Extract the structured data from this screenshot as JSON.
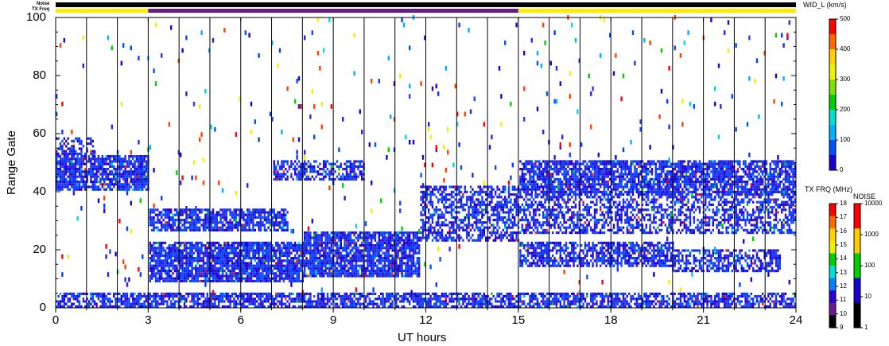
{
  "chart_data": {
    "type": "heatmap",
    "xlabel": "UT hours",
    "ylabel": "Range Gate",
    "xlim": [
      0,
      24
    ],
    "ylim": [
      0,
      100
    ],
    "x_ticks": [
      "0",
      "3",
      "6",
      "9",
      "12",
      "15",
      "18",
      "21",
      "24"
    ],
    "y_ticks": [
      "0",
      "20",
      "40",
      "60",
      "80",
      "100"
    ],
    "top_strip_labels": {
      "noise": "Noise",
      "txfreq": "TX Freq"
    },
    "tx_freq_segments": [
      {
        "from": 0,
        "to": 3,
        "color": "#ffeb00"
      },
      {
        "from": 3,
        "to": 15,
        "color": "#6a1a8a"
      },
      {
        "from": 15,
        "to": 24,
        "color": "#ffeb00"
      }
    ],
    "vertical_scan_lines_ut": [
      1,
      2,
      3,
      4,
      5,
      6,
      7,
      8,
      9,
      10,
      11,
      12,
      13,
      14,
      15,
      16,
      17,
      18,
      19,
      20,
      21,
      22,
      23
    ],
    "bands": [
      {
        "t0": 0,
        "t1": 3,
        "g0": 40,
        "g1": 52,
        "density": 0.85
      },
      {
        "t0": 0,
        "t1": 1.2,
        "g0": 52,
        "g1": 58,
        "density": 0.5
      },
      {
        "t0": 3,
        "t1": 7.5,
        "g0": 26,
        "g1": 34,
        "density": 0.8
      },
      {
        "t0": 7,
        "t1": 10,
        "g0": 43,
        "g1": 50,
        "density": 0.6
      },
      {
        "t0": 3,
        "t1": 8,
        "g0": 8,
        "g1": 22,
        "density": 0.85
      },
      {
        "t0": 8,
        "t1": 11.8,
        "g0": 10,
        "g1": 26,
        "density": 0.85
      },
      {
        "t0": 11.8,
        "t1": 15,
        "g0": 22,
        "g1": 42,
        "density": 0.6
      },
      {
        "t0": 15,
        "t1": 24,
        "g0": 38,
        "g1": 50,
        "density": 0.8
      },
      {
        "t0": 15,
        "t1": 24,
        "g0": 25,
        "g1": 38,
        "density": 0.55
      },
      {
        "t0": 15,
        "t1": 20,
        "g0": 14,
        "g1": 22,
        "density": 0.7
      },
      {
        "t0": 20,
        "t1": 23.5,
        "g0": 12,
        "g1": 20,
        "density": 0.6
      },
      {
        "t0": 0,
        "t1": 24,
        "g0": 0,
        "g1": 5,
        "density": 0.7
      }
    ],
    "width_colorbar": {
      "title": "WID_L (km/s)",
      "ticks": [
        "500",
        "400",
        "300",
        "200",
        "100",
        "0"
      ],
      "colors": [
        "#ff0000",
        "#ff6a00",
        "#ffd200",
        "#f0f000",
        "#7ee000",
        "#00d000",
        "#00e0d0",
        "#00b0ff",
        "#0050ff",
        "#1a00d0"
      ]
    },
    "txfreq_colorbar": {
      "title": "TX FRQ (MHz)",
      "ticks": [
        "18",
        "17",
        "16",
        "15",
        "14",
        "13",
        "12",
        "11",
        "10",
        "9"
      ],
      "colors": [
        "#ff0000",
        "#ff6a00",
        "#ffd200",
        "#f0f000",
        "#00d000",
        "#00e0d0",
        "#0080ff",
        "#2a00d0",
        "#6a1a8a",
        "#000000"
      ]
    },
    "noise_colorbar": {
      "title": "NOISE",
      "ticks": [
        "10000",
        "1000",
        "100",
        "10",
        "1"
      ],
      "colors": [
        "#ff0000",
        "#ffcc00",
        "#00d000",
        "#1a00d0",
        "#000000"
      ]
    }
  }
}
